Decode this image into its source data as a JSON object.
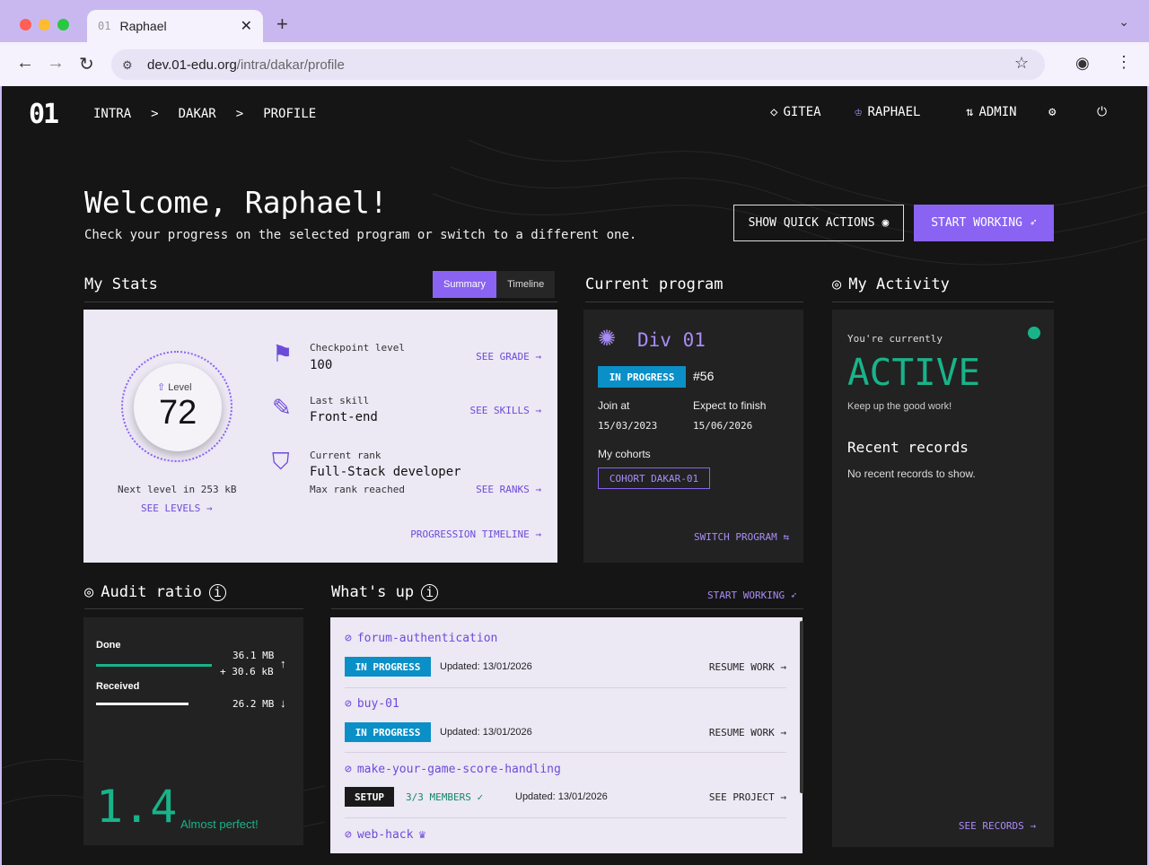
{
  "browser": {
    "tab_number": "01",
    "tab_title": "Raphael",
    "url_host": "dev.01-edu.org",
    "url_path": "/intra/dakar/profile"
  },
  "nav": {
    "logo": "01",
    "breadcrumbs": [
      "INTRA",
      ">",
      "DAKAR",
      ">",
      "PROFILE"
    ],
    "gitea": "GITEA",
    "user": "RAPHAEL",
    "admin": "ADMIN"
  },
  "header": {
    "welcome": "Welcome, Raphael!",
    "subtitle": "Check your progress on the selected program or switch to a different one.",
    "quick_actions": "SHOW QUICK ACTIONS",
    "start_working": "START WORKING"
  },
  "stats": {
    "title": "My Stats",
    "toggle_summary": "Summary",
    "toggle_timeline": "Timeline",
    "level_label": "Level",
    "level_value": "72",
    "next_level": "Next level in 253 kB",
    "see_levels": "SEE LEVELS",
    "checkpoint_label": "Checkpoint level",
    "checkpoint_value": "100",
    "see_grade": "SEE GRADE",
    "skill_label": "Last skill",
    "skill_value": "Front-end",
    "see_skills": "SEE SKILLS",
    "rank_label": "Current rank",
    "rank_value": "Full-Stack developer",
    "rank_note": "Max rank reached",
    "see_ranks": "SEE RANKS",
    "progression": "PROGRESSION TIMELINE"
  },
  "program": {
    "title": "Current program",
    "name": "Div 01",
    "status": "IN PROGRESS",
    "number": "#56",
    "join_label": "Join at",
    "join_date": "15/03/2023",
    "finish_label": "Expect to finish",
    "finish_date": "15/06/2026",
    "cohorts_label": "My cohorts",
    "cohort": "COHORT DAKAR-01",
    "switch": "SWITCH PROGRAM"
  },
  "activity": {
    "title": "My Activity",
    "currently": "You're currently",
    "state": "ACTIVE",
    "keep_up": "Keep up the good work!",
    "records_title": "Recent records",
    "no_records": "No recent records to show.",
    "see_records": "SEE RECORDS",
    "status_color": "#19b389"
  },
  "audit": {
    "title": "Audit ratio",
    "done_label": "Done",
    "done_value": "36.1 MB",
    "done_extra": "+ 30.6 kB",
    "received_label": "Received",
    "received_value": "26.2 MB",
    "ratio": "1.4",
    "ratio_text": "Almost perfect!",
    "done_color": "#19b389",
    "received_color": "#ffffff"
  },
  "whats_up": {
    "title": "What's up",
    "start_working": "START WORKING",
    "items": [
      {
        "name": "forum-authentication",
        "badge": "IN PROGRESS",
        "updated": "Updated: 13/01/2026",
        "action": "RESUME WORK"
      },
      {
        "name": "buy-01",
        "badge": "IN PROGRESS",
        "updated": "Updated: 13/01/2026",
        "action": "RESUME WORK"
      },
      {
        "name": "make-your-game-score-handling",
        "badge": "SETUP",
        "members": "3/3 MEMBERS",
        "updated": "Updated: 13/01/2026",
        "action": "SEE PROJECT"
      },
      {
        "name": "web-hack"
      }
    ]
  }
}
